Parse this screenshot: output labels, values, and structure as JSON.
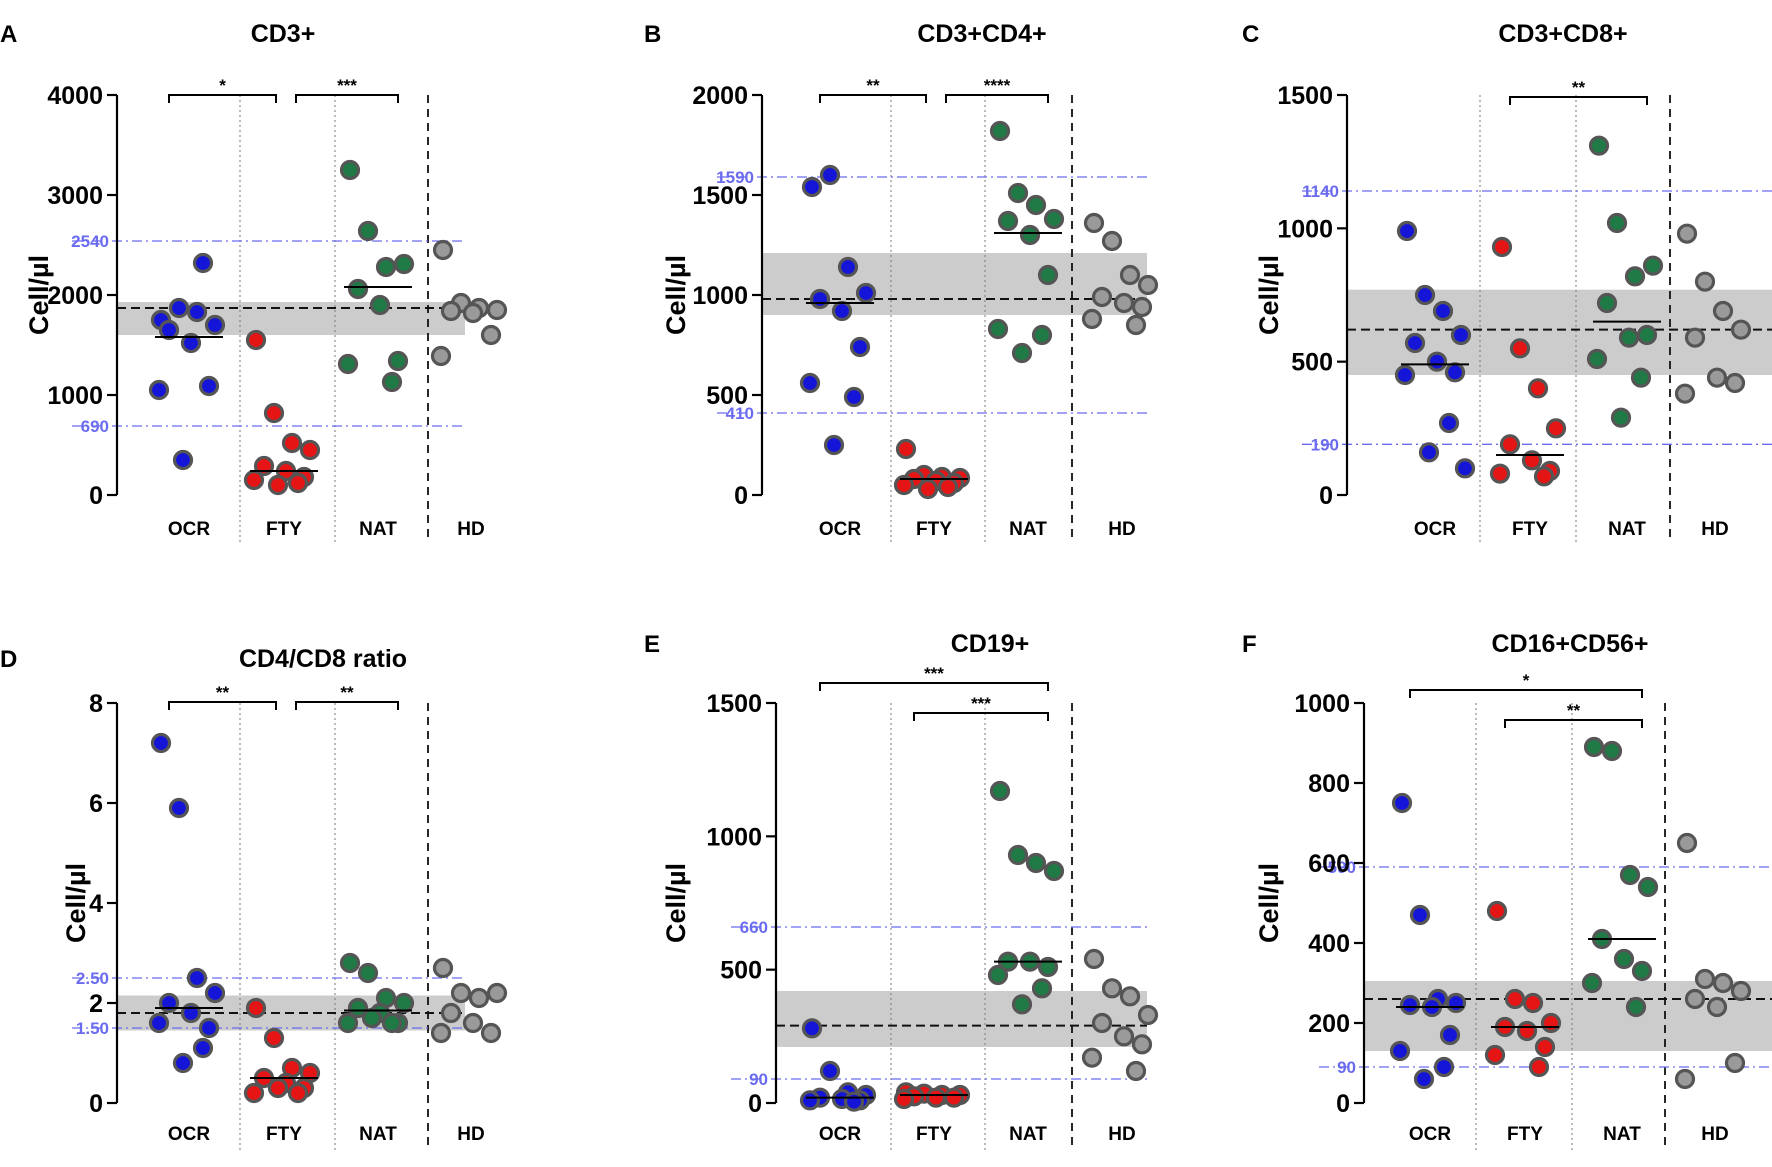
{
  "figure": {
    "ylabel": "Cell/µl",
    "colors": {
      "OCR": "#1515d8",
      "FTY": "#e51515",
      "NAT": "#1f7a45",
      "HD": "#9a9a9a",
      "marker_edge": "#555555",
      "ref_line": "#6b6bf0",
      "band": "#cccccc"
    }
  },
  "chart_data": [
    {
      "panel": "A",
      "type": "scatter",
      "title": "CD3+",
      "ylabel": "Cell/µl",
      "categories": [
        "OCR",
        "FTY",
        "NAT",
        "HD"
      ],
      "ylim": [
        0,
        4000
      ],
      "yticks": [
        0,
        1000,
        2000,
        3000,
        4000
      ],
      "ref_lines": [
        {
          "value": 2540,
          "label": "2540"
        },
        {
          "value": 690,
          "label": "690"
        }
      ],
      "hd_band": [
        1600,
        1930
      ],
      "hd_median": 1870,
      "series": [
        {
          "name": "OCR",
          "median": 1580,
          "values": [
            1750,
            1870,
            1830,
            1700,
            1650,
            1520,
            1090,
            1050,
            2320,
            350
          ]
        },
        {
          "name": "FTY",
          "median": 240,
          "values": [
            1550,
            820,
            520,
            450,
            290,
            240,
            180,
            150,
            120,
            100
          ]
        },
        {
          "name": "NAT",
          "median": 2080,
          "values": [
            3250,
            2640,
            2280,
            2310,
            2060,
            1900,
            1340,
            1310,
            1130
          ]
        },
        {
          "name": "HD",
          "median": 1870,
          "values": [
            2450,
            1920,
            1870,
            1850,
            1840,
            1820,
            1600,
            1390
          ]
        }
      ],
      "brackets": [
        {
          "from": 0,
          "to": 1,
          "label": "*"
        },
        {
          "from": 1,
          "to": 2,
          "label": "***"
        }
      ]
    },
    {
      "panel": "B",
      "type": "scatter",
      "title": "CD3+CD4+",
      "ylabel": "Cell/µl",
      "categories": [
        "OCR",
        "FTY",
        "NAT",
        "HD"
      ],
      "ylim": [
        0,
        2000
      ],
      "yticks": [
        0,
        500,
        1000,
        1500,
        2000
      ],
      "ref_lines": [
        {
          "value": 1590,
          "label": "1590"
        },
        {
          "value": 410,
          "label": "410"
        }
      ],
      "hd_band": [
        900,
        1210
      ],
      "hd_median": 980,
      "series": [
        {
          "name": "OCR",
          "median": 960,
          "values": [
            1540,
            1600,
            1140,
            1010,
            980,
            920,
            740,
            560,
            490,
            250
          ]
        },
        {
          "name": "FTY",
          "median": 80,
          "values": [
            230,
            100,
            90,
            85,
            80,
            70,
            60,
            50,
            40,
            30
          ]
        },
        {
          "name": "NAT",
          "median": 1310,
          "values": [
            1820,
            1510,
            1450,
            1380,
            1370,
            1300,
            1100,
            830,
            800,
            710
          ]
        },
        {
          "name": "HD",
          "median": 980,
          "values": [
            1360,
            1270,
            1100,
            1050,
            990,
            960,
            940,
            880,
            850
          ]
        }
      ],
      "brackets": [
        {
          "from": 0,
          "to": 1,
          "label": "**"
        },
        {
          "from": 1,
          "to": 2,
          "label": "****"
        }
      ]
    },
    {
      "panel": "C",
      "type": "scatter",
      "title": "CD3+CD8+",
      "ylabel": "Cell/µl",
      "categories": [
        "OCR",
        "FTY",
        "NAT",
        "HD"
      ],
      "ylim": [
        0,
        1500
      ],
      "yticks": [
        0,
        500,
        1000,
        1500
      ],
      "ref_lines": [
        {
          "value": 1140,
          "label": "1140"
        },
        {
          "value": 190,
          "label": "190"
        }
      ],
      "hd_band": [
        450,
        770
      ],
      "hd_median": 620,
      "series": [
        {
          "name": "OCR",
          "median": 490,
          "values": [
            990,
            750,
            690,
            600,
            570,
            500,
            460,
            450,
            270,
            160,
            100
          ]
        },
        {
          "name": "FTY",
          "median": 150,
          "values": [
            930,
            550,
            400,
            250,
            190,
            130,
            90,
            80,
            70
          ]
        },
        {
          "name": "NAT",
          "median": 650,
          "values": [
            1310,
            1020,
            820,
            860,
            720,
            590,
            600,
            510,
            440,
            290
          ]
        },
        {
          "name": "HD",
          "median": 620,
          "values": [
            980,
            800,
            690,
            620,
            590,
            440,
            420,
            380
          ]
        }
      ],
      "brackets": [
        {
          "from": 1,
          "to": 2,
          "label": "**"
        }
      ]
    },
    {
      "panel": "D",
      "type": "scatter",
      "title": "CD4/CD8 ratio",
      "ylabel": "Cell/µl",
      "categories": [
        "OCR",
        "FTY",
        "NAT",
        "HD"
      ],
      "ylim": [
        0,
        8
      ],
      "yticks": [
        0,
        2,
        4,
        6,
        8
      ],
      "ref_lines": [
        {
          "value": 2.5,
          "label": "2.50"
        },
        {
          "value": 1.5,
          "label": "1.50"
        }
      ],
      "hd_band": [
        1.45,
        2.15
      ],
      "hd_median": 1.8,
      "series": [
        {
          "name": "OCR",
          "median": 1.9,
          "values": [
            7.2,
            5.9,
            2.5,
            2.2,
            2.0,
            1.8,
            1.5,
            1.6,
            1.1,
            0.8
          ]
        },
        {
          "name": "FTY",
          "median": 0.5,
          "values": [
            1.9,
            1.3,
            0.7,
            0.6,
            0.5,
            0.4,
            0.3,
            0.2,
            0.2,
            0.3
          ]
        },
        {
          "name": "NAT",
          "median": 1.85,
          "values": [
            2.8,
            2.6,
            2.1,
            2.0,
            1.9,
            1.8,
            1.6,
            1.6,
            1.6,
            1.7
          ]
        },
        {
          "name": "HD",
          "median": 1.8,
          "values": [
            2.7,
            2.2,
            2.1,
            2.2,
            1.8,
            1.6,
            1.4,
            1.4
          ]
        }
      ],
      "brackets": [
        {
          "from": 0,
          "to": 1,
          "label": "**"
        },
        {
          "from": 1,
          "to": 2,
          "label": "**"
        }
      ]
    },
    {
      "panel": "E",
      "type": "scatter",
      "title": "CD19+",
      "ylabel": "Cell/µl",
      "categories": [
        "OCR",
        "FTY",
        "NAT",
        "HD"
      ],
      "ylim": [
        0,
        1500
      ],
      "yticks": [
        0,
        500,
        1000,
        1500
      ],
      "ref_lines": [
        {
          "value": 660,
          "label": "660"
        },
        {
          "value": 90,
          "label": "90"
        }
      ],
      "hd_band": [
        210,
        420
      ],
      "hd_median": 290,
      "series": [
        {
          "name": "OCR",
          "median": 20,
          "values": [
            280,
            120,
            40,
            30,
            20,
            15,
            10,
            10,
            5
          ]
        },
        {
          "name": "FTY",
          "median": 30,
          "values": [
            40,
            35,
            30,
            30,
            25,
            20,
            20,
            15
          ]
        },
        {
          "name": "NAT",
          "median": 530,
          "values": [
            1170,
            930,
            900,
            870,
            530,
            530,
            510,
            480,
            430,
            370
          ]
        },
        {
          "name": "HD",
          "median": 290,
          "values": [
            540,
            430,
            400,
            330,
            300,
            250,
            220,
            170,
            120
          ]
        }
      ],
      "brackets": [
        {
          "from": 0,
          "to": 2,
          "label": "***"
        },
        {
          "from": 1,
          "to": 2,
          "label": "***"
        }
      ]
    },
    {
      "panel": "F",
      "type": "scatter",
      "title": "CD16+CD56+",
      "ylabel": "Cell/µl",
      "categories": [
        "OCR",
        "FTY",
        "NAT",
        "HD"
      ],
      "ylim": [
        0,
        1000
      ],
      "yticks": [
        0,
        200,
        400,
        600,
        800,
        1000
      ],
      "ref_lines": [
        {
          "value": 590,
          "label": "590"
        },
        {
          "value": 90,
          "label": "90"
        }
      ],
      "hd_band": [
        130,
        305
      ],
      "hd_median": 260,
      "series": [
        {
          "name": "OCR",
          "median": 240,
          "values": [
            750,
            470,
            260,
            250,
            245,
            240,
            170,
            130,
            90,
            60
          ]
        },
        {
          "name": "FTY",
          "median": 190,
          "values": [
            480,
            260,
            250,
            200,
            190,
            180,
            140,
            120,
            90
          ]
        },
        {
          "name": "NAT",
          "median": 410,
          "values": [
            890,
            880,
            570,
            540,
            410,
            360,
            330,
            300,
            240
          ]
        },
        {
          "name": "HD",
          "median": 260,
          "values": [
            650,
            310,
            300,
            280,
            260,
            240,
            100,
            60
          ]
        }
      ],
      "brackets": [
        {
          "from": 0,
          "to": 2,
          "label": "*"
        },
        {
          "from": 1,
          "to": 2,
          "label": "**"
        }
      ]
    }
  ]
}
